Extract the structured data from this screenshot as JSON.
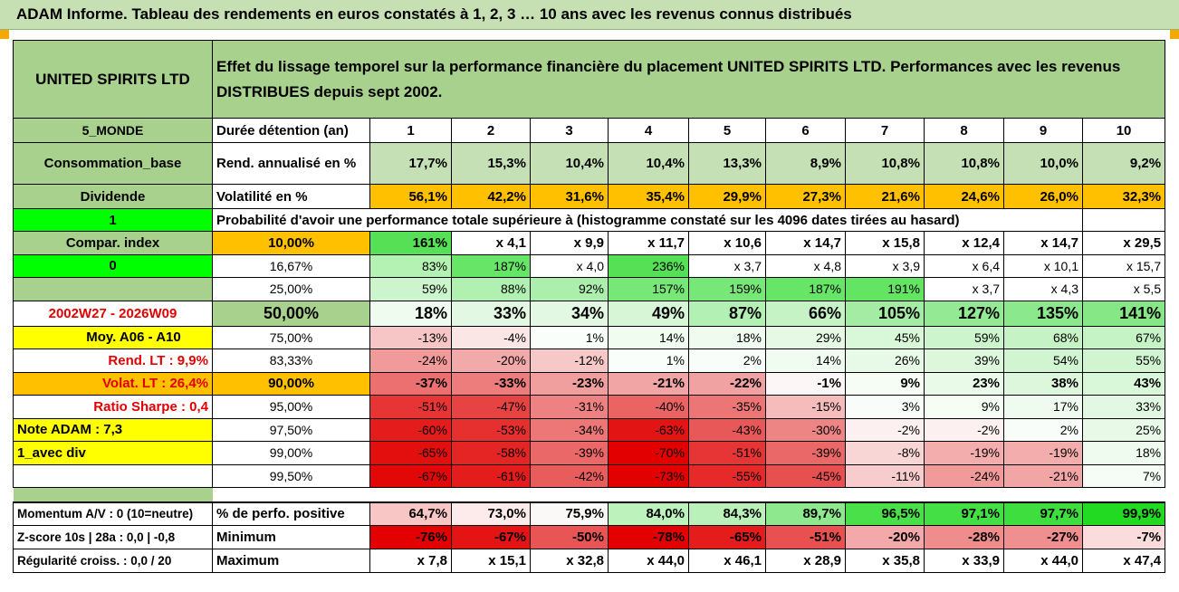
{
  "banner": {
    "title": "ADAM Informe. Tableau des rendements en euros constatés à 1, 2, 3 … 10 ans avec les revenus connus distribués"
  },
  "header": {
    "company": "UNITED SPIRITS LTD",
    "description_line1": "Effet du lissage temporel sur la performance financière du placement UNITED SPIRITS LTD. Performances avec les revenus",
    "description_line2": "DISTRIBUES depuis sept 2002."
  },
  "left": {
    "zone": "5_MONDE",
    "sector": "Consommation_base",
    "dividend_label": "Dividende",
    "dividend_value": "1",
    "compar_label": "Compar. index",
    "compar_value": "0",
    "period": "2002W27 - 2026W09",
    "moy": "Moy. A06 - A10",
    "rend_lt": "Rend. LT :   9,9%",
    "volat_lt": "Volat. LT :   26,4%",
    "sharpe": "Ratio Sharpe :   0,4",
    "note": "Note ADAM : 7,3",
    "avec_div": "1_avec div"
  },
  "columns": [
    "1",
    "2",
    "3",
    "4",
    "5",
    "6",
    "7",
    "8",
    "9",
    "10"
  ],
  "labels": {
    "duree": "Durée détention (an)",
    "rend": "Rend. annualisé en %",
    "vol": "Volatilité en %",
    "proba": "Probabilité d'avoir une performance totale supérieure à (histogramme constaté sur les 4096 dates tirées au hasard)"
  },
  "rend": [
    "17,7%",
    "15,3%",
    "10,4%",
    "10,4%",
    "13,3%",
    "8,9%",
    "10,8%",
    "10,8%",
    "10,0%",
    "9,2%"
  ],
  "vol": [
    "56,1%",
    "42,2%",
    "31,6%",
    "35,4%",
    "29,9%",
    "27,3%",
    "21,6%",
    "24,6%",
    "26,0%",
    "32,3%"
  ],
  "proba_rows": [
    {
      "p": "10,00%",
      "v": [
        "161%",
        "x 4,1",
        "x 9,9",
        "x 11,7",
        "x 10,6",
        "x 14,7",
        "x 15,8",
        "x 12,4",
        "x 14,7",
        "x 29,5"
      ],
      "bg": [
        "#55e055",
        "#fff",
        "#fff",
        "#fff",
        "#fff",
        "#fff",
        "#fff",
        "#fff",
        "#fff",
        "#fff"
      ]
    },
    {
      "p": "16,67%",
      "v": [
        "83%",
        "187%",
        "x 4,0",
        "236%",
        "x 3,7",
        "x 4,8",
        "x 3,9",
        "x 6,4",
        "x 10,1",
        "x 15,7"
      ],
      "bg": [
        "#b3f2b3",
        "#66e566",
        "#fff",
        "#55e055",
        "#fff",
        "#fff",
        "#fff",
        "#fff",
        "#fff",
        "#fff"
      ]
    },
    {
      "p": "25,00%",
      "v": [
        "59%",
        "88%",
        "92%",
        "157%",
        "159%",
        "187%",
        "191%",
        "x 3,7",
        "x 4,3",
        "x 5,5"
      ],
      "bg": [
        "#cdf5cd",
        "#b0f0b0",
        "#aceeac",
        "#77e777",
        "#77e777",
        "#66e566",
        "#63e463",
        "#fff",
        "#fff",
        "#fff"
      ]
    },
    {
      "p": "50,00%",
      "v": [
        "18%",
        "33%",
        "34%",
        "49%",
        "87%",
        "66%",
        "105%",
        "127%",
        "135%",
        "141%"
      ],
      "bg": [
        "#eefbee",
        "#e2f8e2",
        "#e2f8e2",
        "#d6f6d6",
        "#b3f0b3",
        "#c6f3c6",
        "#a4eca4",
        "#94ea94",
        "#8ce88c",
        "#86e786"
      ]
    },
    {
      "p": "75,00%",
      "v": [
        "-13%",
        "-4%",
        "1%",
        "14%",
        "18%",
        "29%",
        "45%",
        "59%",
        "68%",
        "67%"
      ],
      "bg": [
        "#f6c6c6",
        "#fbe6e6",
        "#fafefa",
        "#f1fcf1",
        "#eefbee",
        "#e5f9e5",
        "#d9f7d9",
        "#cdf5cd",
        "#c6f3c6",
        "#c6f3c6"
      ]
    },
    {
      "p": "83,33%",
      "v": [
        "-24%",
        "-20%",
        "-12%",
        "1%",
        "2%",
        "14%",
        "26%",
        "39%",
        "54%",
        "55%"
      ],
      "bg": [
        "#f09a9a",
        "#f2a9a9",
        "#f6c8c8",
        "#fafefa",
        "#f9fdf9",
        "#f1fcf1",
        "#e7f9e7",
        "#dcf7dc",
        "#d1f5d1",
        "#d0f5d0"
      ]
    },
    {
      "p": "90,00%",
      "v": [
        "-37%",
        "-33%",
        "-23%",
        "-21%",
        "-22%",
        "-1%",
        "9%",
        "23%",
        "38%",
        "43%"
      ],
      "bg": [
        "#ec7070",
        "#ed7d7d",
        "#f09e9e",
        "#f1a5a5",
        "#f0a1a1",
        "#fdf6f6",
        "#f5fdf5",
        "#e9fae9",
        "#ddf7dd",
        "#d9f7d9"
      ]
    },
    {
      "p": "95,00%",
      "v": [
        "-51%",
        "-47%",
        "-31%",
        "-40%",
        "-35%",
        "-15%",
        "3%",
        "9%",
        "17%",
        "33%"
      ],
      "bg": [
        "#e73535",
        "#e84343",
        "#ee8282",
        "#ea6464",
        "#ec7575",
        "#f5bcbc",
        "#f9fdf9",
        "#f5fdf5",
        "#effbef",
        "#e2f8e2"
      ]
    },
    {
      "p": "97,50%",
      "v": [
        "-60%",
        "-53%",
        "-34%",
        "-63%",
        "-43%",
        "-30%",
        "-2%",
        "-2%",
        "2%",
        "25%"
      ],
      "bg": [
        "#e41c1c",
        "#e63030",
        "#ed7777",
        "#e31414",
        "#e95858",
        "#ee8585",
        "#fcf0f0",
        "#fcf0f0",
        "#f9fdf9",
        "#e8f9e8"
      ]
    },
    {
      "p": "99,00%",
      "v": [
        "-65%",
        "-58%",
        "-39%",
        "-70%",
        "-51%",
        "-39%",
        "-8%",
        "-19%",
        "-19%",
        "18%"
      ],
      "bg": [
        "#e30e0e",
        "#e52424",
        "#ea6868",
        "#e20000",
        "#e73535",
        "#ea6868",
        "#f9d6d6",
        "#f3adad",
        "#f3adad",
        "#eefbee"
      ]
    },
    {
      "p": "99,50%",
      "v": [
        "-67%",
        "-61%",
        "-42%",
        "-73%",
        "-55%",
        "-45%",
        "-11%",
        "-24%",
        "-21%",
        "7%"
      ],
      "bg": [
        "#e20808",
        "#e41c1c",
        "#e95c5c",
        "#e20000",
        "#e62a2a",
        "#e85050",
        "#f8cccc",
        "#f09a9a",
        "#f1a5a5",
        "#f6fdf6"
      ]
    }
  ],
  "bottom": {
    "momentum": "Momentum A/V : 0 (10=neutre)",
    "zscore": "Z-score 10s | 28a : 0,0 | -0,8",
    "regularite": "Régularité croiss. : 0,0 / 20",
    "pos_label": "% de perfo. positive",
    "min_label": "Minimum",
    "max_label": "Maximum",
    "pos": [
      "64,7%",
      "73,0%",
      "75,9%",
      "84,0%",
      "84,3%",
      "89,7%",
      "96,5%",
      "97,1%",
      "97,7%",
      "99,9%"
    ],
    "pos_bg": [
      "#f9c6c6",
      "#fdeaea",
      "#fbf8f8",
      "#bdf2bd",
      "#baf1ba",
      "#8ee88e",
      "#4ae04a",
      "#44df44",
      "#3ede3e",
      "#22da22"
    ],
    "min": [
      "-76%",
      "-67%",
      "-50%",
      "-78%",
      "-65%",
      "-51%",
      "-20%",
      "-28%",
      "-27%",
      "-7%"
    ],
    "min_bg": [
      "#e20000",
      "#e41414",
      "#e95454",
      "#e20000",
      "#e41c1c",
      "#e95050",
      "#f3a9a9",
      "#ef8c8c",
      "#ef8f8f",
      "#fadcdc"
    ],
    "max": [
      "x 7,8",
      "x 15,1",
      "x 32,8",
      "x 44,0",
      "x 46,1",
      "x 28,9",
      "x 35,8",
      "x 33,9",
      "x 44,0",
      "x 47,4"
    ]
  }
}
